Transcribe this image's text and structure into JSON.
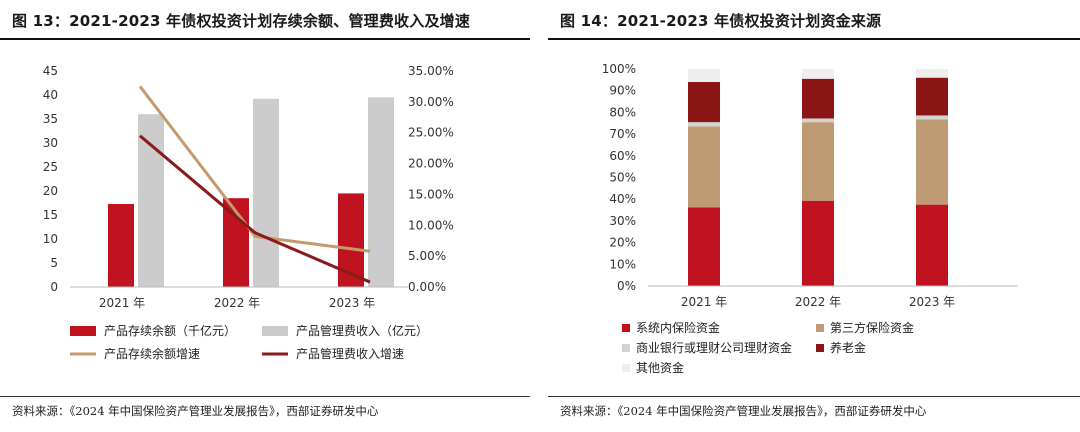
{
  "left": {
    "title": "图 13：2021-2023 年债权投资计划存续余额、管理费收入及增速",
    "source": "资料来源：《2024 年中国保险资产管理业发展报告》，西部证券研发中心"
  },
  "right": {
    "title": "图 14：2021-2023 年债权投资计划资金来源",
    "source": "资料来源：《2024 年中国保险资产管理业发展报告》，西部证券研发中心"
  },
  "chart_data": [
    {
      "type": "bar",
      "categories": [
        "2021 年",
        "2022 年",
        "2023 年"
      ],
      "y_left": {
        "ticks": [
          "0",
          "5",
          "10",
          "15",
          "20",
          "25",
          "30",
          "35",
          "40",
          "45"
        ],
        "ylim": [
          0,
          45
        ]
      },
      "y_right": {
        "ticks": [
          "0.00%",
          "5.00%",
          "10.00%",
          "15.00%",
          "20.00%",
          "25.00%",
          "30.00%",
          "35.00%"
        ],
        "ylim": [
          0,
          35
        ]
      },
      "series": [
        {
          "name": "产品存续余额（千亿元）",
          "kind": "bar",
          "axis": "left",
          "color": "#c0121f",
          "values": [
            17.3,
            18.5,
            19.5
          ]
        },
        {
          "name": "产品管理费收入（亿元）",
          "kind": "bar",
          "axis": "left",
          "color": "#cccccc",
          "values": [
            36.0,
            39.2,
            39.5
          ]
        },
        {
          "name": "产品存续余额增速",
          "kind": "line",
          "axis": "right",
          "color": "#c49a6c",
          "values": [
            32.5,
            8.2,
            5.8
          ]
        },
        {
          "name": "产品管理费收入增速",
          "kind": "line",
          "axis": "right",
          "color": "#8b1a1a",
          "values": [
            24.5,
            8.8,
            0.8
          ]
        }
      ],
      "legend_position": "bottom"
    },
    {
      "type": "bar",
      "stacked": true,
      "categories": [
        "2021 年",
        "2022 年",
        "2023 年"
      ],
      "y": {
        "ticks": [
          "0%",
          "10%",
          "20%",
          "30%",
          "40%",
          "50%",
          "60%",
          "70%",
          "80%",
          "90%",
          "100%"
        ],
        "ylim": [
          0,
          100
        ]
      },
      "series": [
        {
          "name": "系统内保险资金",
          "color": "#c0121f",
          "values": [
            36.2,
            39.3,
            37.5
          ]
        },
        {
          "name": "第三方保险资金",
          "color": "#bf9b73",
          "values": [
            37.3,
            36.2,
            39.3
          ]
        },
        {
          "name": "商业银行或理财公司理财资金",
          "color": "#d3d3d3",
          "values": [
            2.0,
            1.7,
            1.8
          ]
        },
        {
          "name": "养老金",
          "color": "#8b1414",
          "values": [
            18.5,
            18.3,
            17.4
          ]
        },
        {
          "name": "其他资金",
          "color": "#f0eded",
          "values": [
            6.0,
            4.5,
            4.0
          ]
        }
      ],
      "legend_position": "bottom"
    }
  ]
}
